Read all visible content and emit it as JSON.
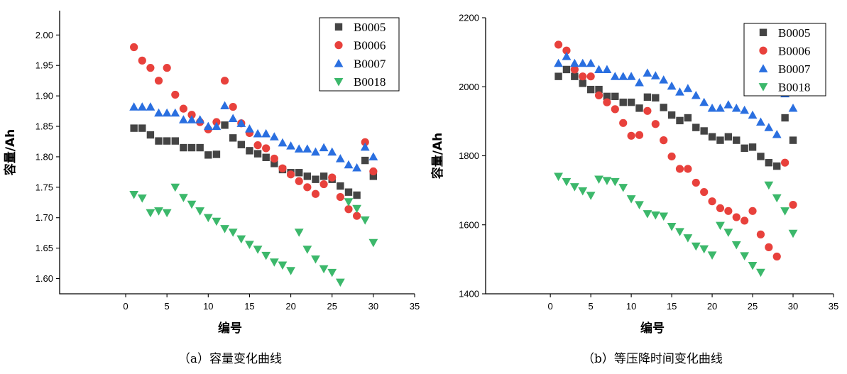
{
  "chart_data": [
    {
      "type": "scatter",
      "caption": "（a）容量变化曲线",
      "xlabel": "编号",
      "ylabel": "容量/Ah",
      "xlim": [
        -8,
        35
      ],
      "ylim": [
        1.575,
        2.04
      ],
      "xticks": [
        0,
        5,
        10,
        15,
        20,
        25,
        30,
        35
      ],
      "yticks": [
        1.6,
        1.65,
        1.7,
        1.75,
        1.8,
        1.85,
        1.9,
        1.95,
        2.0
      ],
      "ytick_labels": [
        "1.60",
        "1.65",
        "1.70",
        "1.75",
        "1.80",
        "1.85",
        "1.90",
        "1.95",
        "2.00"
      ],
      "legend_position": "top-right",
      "series": [
        {
          "name": "B0005",
          "marker": "square",
          "color": "#444444",
          "x": [
            1,
            2,
            3,
            4,
            5,
            6,
            7,
            8,
            9,
            10,
            11,
            12,
            13,
            14,
            15,
            16,
            17,
            18,
            19,
            20,
            21,
            22,
            23,
            24,
            25,
            26,
            27,
            28,
            29,
            30
          ],
          "y": [
            1.847,
            1.847,
            1.836,
            1.826,
            1.826,
            1.826,
            1.815,
            1.815,
            1.815,
            1.803,
            1.804,
            1.852,
            1.831,
            1.82,
            1.81,
            1.805,
            1.799,
            1.789,
            1.779,
            1.774,
            1.774,
            1.768,
            1.763,
            1.768,
            1.763,
            1.752,
            1.742,
            1.737,
            1.794,
            1.768
          ]
        },
        {
          "name": "B0006",
          "marker": "circle",
          "color": "#e8413c",
          "x": [
            1,
            2,
            3,
            4,
            5,
            6,
            7,
            8,
            9,
            10,
            11,
            12,
            13,
            14,
            15,
            16,
            17,
            18,
            19,
            20,
            21,
            22,
            23,
            24,
            25,
            26,
            27,
            28,
            29,
            30
          ],
          "y": [
            1.98,
            1.958,
            1.946,
            1.925,
            1.946,
            1.902,
            1.879,
            1.869,
            1.857,
            1.845,
            1.857,
            1.925,
            1.882,
            1.855,
            1.839,
            1.819,
            1.814,
            1.797,
            1.781,
            1.771,
            1.76,
            1.75,
            1.739,
            1.755,
            1.766,
            1.734,
            1.714,
            1.703,
            1.824,
            1.776
          ]
        },
        {
          "name": "B0007",
          "marker": "triangle-up",
          "color": "#2a6fe0",
          "x": [
            1,
            2,
            3,
            4,
            5,
            6,
            7,
            8,
            9,
            10,
            11,
            12,
            13,
            14,
            15,
            16,
            17,
            18,
            19,
            20,
            21,
            22,
            23,
            24,
            25,
            26,
            27,
            28,
            29,
            30
          ],
          "y": [
            1.882,
            1.882,
            1.882,
            1.872,
            1.872,
            1.872,
            1.861,
            1.861,
            1.861,
            1.85,
            1.85,
            1.884,
            1.863,
            1.855,
            1.846,
            1.838,
            1.838,
            1.833,
            1.823,
            1.818,
            1.813,
            1.813,
            1.808,
            1.815,
            1.808,
            1.797,
            1.787,
            1.782,
            1.816,
            1.8
          ]
        },
        {
          "name": "B0018",
          "marker": "triangle-down",
          "color": "#3cb86b",
          "x": [
            1,
            2,
            3,
            4,
            5,
            6,
            7,
            8,
            9,
            10,
            11,
            12,
            13,
            14,
            15,
            16,
            17,
            18,
            19,
            20,
            21,
            22,
            23,
            24,
            25,
            26,
            27,
            28,
            29,
            30
          ],
          "y": [
            1.738,
            1.732,
            1.708,
            1.711,
            1.708,
            1.75,
            1.733,
            1.722,
            1.711,
            1.7,
            1.694,
            1.682,
            1.676,
            1.665,
            1.656,
            1.648,
            1.638,
            1.627,
            1.622,
            1.613,
            1.676,
            1.648,
            1.632,
            1.616,
            1.61,
            1.594,
            1.726,
            1.715,
            1.696,
            1.659
          ]
        }
      ]
    },
    {
      "type": "scatter",
      "caption": "（b）等压降时间变化曲线",
      "xlabel": "编号",
      "ylabel": "容量/Ah",
      "xlim": [
        -8,
        35
      ],
      "ylim": [
        1400,
        2200
      ],
      "xticks": [
        0,
        5,
        10,
        15,
        20,
        25,
        30,
        35
      ],
      "yticks": [
        1400,
        1600,
        1800,
        2000,
        2200
      ],
      "ytick_labels": [
        "1400",
        "1600",
        "1800",
        "2000",
        "2200"
      ],
      "legend_position": "top-right",
      "series": [
        {
          "name": "B0005",
          "marker": "square",
          "color": "#444444",
          "x": [
            1,
            2,
            3,
            4,
            5,
            6,
            7,
            8,
            9,
            10,
            11,
            12,
            13,
            14,
            15,
            16,
            17,
            18,
            19,
            20,
            21,
            22,
            23,
            24,
            25,
            26,
            27,
            28,
            29,
            30
          ],
          "y": [
            2030,
            2050,
            2030,
            2010,
            1992,
            1992,
            1972,
            1972,
            1955,
            1955,
            1938,
            1970,
            1968,
            1940,
            1918,
            1902,
            1910,
            1882,
            1872,
            1855,
            1845,
            1855,
            1845,
            1822,
            1825,
            1798,
            1780,
            1770,
            1910,
            1845
          ]
        },
        {
          "name": "B0006",
          "marker": "circle",
          "color": "#e8413c",
          "x": [
            1,
            2,
            3,
            4,
            5,
            6,
            7,
            8,
            9,
            10,
            11,
            12,
            13,
            14,
            15,
            16,
            17,
            18,
            19,
            20,
            21,
            22,
            23,
            24,
            25,
            26,
            27,
            28,
            29,
            30
          ],
          "y": [
            2122,
            2105,
            2050,
            2030,
            2030,
            1975,
            1955,
            1935,
            1895,
            1858,
            1860,
            1930,
            1892,
            1845,
            1798,
            1762,
            1762,
            1722,
            1695,
            1668,
            1648,
            1640,
            1622,
            1612,
            1640,
            1572,
            1535,
            1508,
            1780,
            1658
          ]
        },
        {
          "name": "B0007",
          "marker": "triangle-up",
          "color": "#2a6fe0",
          "x": [
            1,
            2,
            3,
            4,
            5,
            6,
            7,
            8,
            9,
            10,
            11,
            12,
            13,
            14,
            15,
            16,
            17,
            18,
            19,
            20,
            21,
            22,
            23,
            24,
            25,
            26,
            27,
            28,
            29,
            30
          ],
          "y": [
            2068,
            2088,
            2068,
            2068,
            2068,
            2050,
            2050,
            2030,
            2030,
            2030,
            2012,
            2040,
            2032,
            2020,
            2002,
            1985,
            1995,
            1975,
            1955,
            1938,
            1938,
            1948,
            1938,
            1932,
            1918,
            1898,
            1882,
            1862,
            1980,
            1938
          ]
        },
        {
          "name": "B0018",
          "marker": "triangle-down",
          "color": "#3cb86b",
          "x": [
            1,
            2,
            3,
            4,
            5,
            6,
            7,
            8,
            9,
            10,
            11,
            12,
            13,
            14,
            15,
            16,
            17,
            18,
            19,
            20,
            21,
            22,
            23,
            24,
            25,
            26,
            27,
            28,
            29,
            30
          ],
          "y": [
            1740,
            1725,
            1710,
            1698,
            1685,
            1732,
            1728,
            1725,
            1708,
            1675,
            1658,
            1632,
            1628,
            1625,
            1595,
            1580,
            1562,
            1538,
            1530,
            1512,
            1598,
            1578,
            1542,
            1510,
            1482,
            1462,
            1715,
            1678,
            1640,
            1575
          ]
        }
      ]
    }
  ]
}
